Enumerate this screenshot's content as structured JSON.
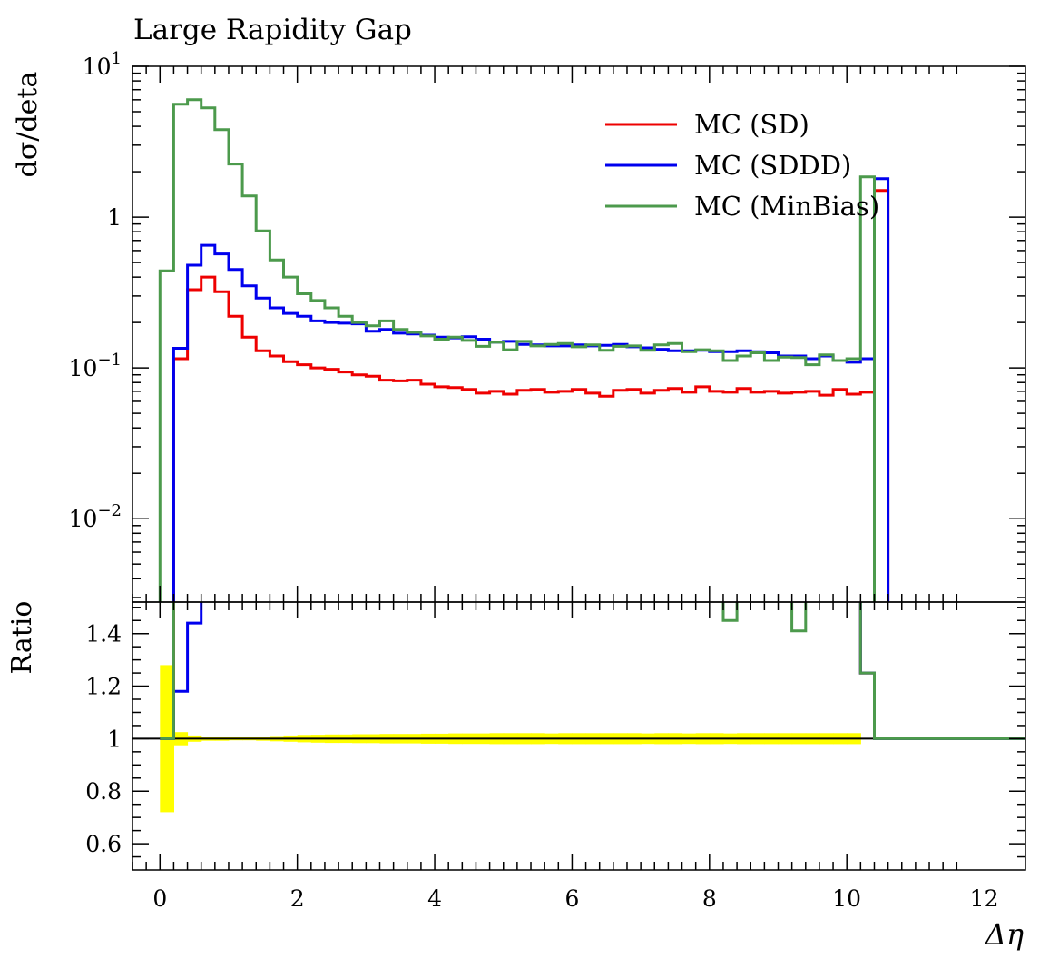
{
  "chart_data": {
    "type": "line",
    "title": "Large Rapidity Gap",
    "xlabel": "Δη",
    "ylabel": "dσ/deta",
    "ratio_ylabel": "Ratio",
    "xlim": [
      -0.4,
      12.6
    ],
    "ylim": [
      0.0028,
      10
    ],
    "yscale": "log",
    "ratio_ylim": [
      0.5,
      1.52
    ],
    "x_ticks": [
      "0",
      "2",
      "4",
      "6",
      "8",
      "10",
      "12"
    ],
    "x_tick_values": [
      0,
      2,
      4,
      6,
      8,
      10,
      12
    ],
    "y_ticks": [
      {
        "value": 10,
        "mantissa": "10",
        "exp": "1"
      },
      {
        "value": 1,
        "mantissa": "1",
        "exp": ""
      },
      {
        "value": 0.1,
        "mantissa": "10",
        "exp": "−1"
      },
      {
        "value": 0.01,
        "mantissa": "10",
        "exp": "−2"
      }
    ],
    "ratio_ticks": [
      "0.6",
      "0.8",
      "1",
      "1.2",
      "1.4"
    ],
    "ratio_tick_values": [
      0.6,
      0.8,
      1.0,
      1.2,
      1.4
    ],
    "legend_position": "top-right",
    "bin_edges": [
      0,
      0.2,
      0.4,
      0.6,
      0.8,
      1.0,
      1.2,
      1.4,
      1.6,
      1.8,
      2.0,
      2.2,
      2.4,
      2.6,
      2.8,
      3.0,
      3.2,
      3.4,
      3.6,
      3.8,
      4.0,
      4.2,
      4.4,
      4.6,
      4.8,
      5.0,
      5.2,
      5.4,
      5.6,
      5.8,
      6.0,
      6.2,
      6.4,
      6.6,
      6.8,
      7.0,
      7.2,
      7.4,
      7.6,
      7.8,
      8.0,
      8.2,
      8.4,
      8.6,
      8.8,
      9.0,
      9.2,
      9.4,
      9.6,
      9.8,
      10.0,
      10.2,
      10.4,
      10.6
    ],
    "series": [
      {
        "name": "MC (SD)",
        "color": "#ee0000",
        "values": [
          0.0001,
          0.115,
          0.33,
          0.4,
          0.32,
          0.22,
          0.16,
          0.13,
          0.12,
          0.11,
          0.105,
          0.1,
          0.098,
          0.094,
          0.09,
          0.088,
          0.083,
          0.082,
          0.083,
          0.078,
          0.075,
          0.074,
          0.072,
          0.068,
          0.07,
          0.067,
          0.071,
          0.072,
          0.069,
          0.07,
          0.072,
          0.068,
          0.065,
          0.071,
          0.072,
          0.068,
          0.071,
          0.073,
          0.069,
          0.075,
          0.07,
          0.069,
          0.073,
          0.069,
          0.07,
          0.068,
          0.069,
          0.07,
          0.066,
          0.072,
          0.067,
          0.069,
          1.5
        ],
        "ratio": [
          1.0,
          3.0,
          3.0,
          3.0,
          3.0,
          3.0,
          3.0,
          3.0,
          3.0,
          3.0,
          3.0,
          3.0,
          3.0,
          3.0,
          3.0,
          3.0,
          3.0,
          3.0,
          3.0,
          3.0,
          3.0,
          3.0,
          3.0,
          3.0,
          3.0,
          3.0,
          3.0,
          3.0,
          3.0,
          3.0,
          3.0,
          3.0,
          3.0,
          3.0,
          3.0,
          3.0,
          3.0,
          3.0,
          3.0,
          3.0,
          3.0,
          3.0,
          3.0,
          3.0,
          3.0,
          3.0,
          3.0,
          3.0,
          3.0,
          3.0,
          3.0,
          1.25,
          1.0
        ]
      },
      {
        "name": "MC (SDDD)",
        "color": "#0000ee",
        "values": [
          0.0001,
          0.135,
          0.48,
          0.65,
          0.57,
          0.45,
          0.35,
          0.29,
          0.25,
          0.23,
          0.22,
          0.205,
          0.2,
          0.198,
          0.196,
          0.175,
          0.18,
          0.17,
          0.168,
          0.165,
          0.16,
          0.158,
          0.161,
          0.155,
          0.148,
          0.15,
          0.143,
          0.142,
          0.14,
          0.14,
          0.142,
          0.14,
          0.141,
          0.143,
          0.138,
          0.136,
          0.133,
          0.13,
          0.13,
          0.131,
          0.128,
          0.128,
          0.13,
          0.128,
          0.126,
          0.12,
          0.12,
          0.115,
          0.12,
          0.112,
          0.109,
          0.115,
          1.8
        ],
        "ratio": [
          1.0,
          1.18,
          1.44,
          3.0,
          3.0,
          3.0,
          3.0,
          3.0,
          3.0,
          3.0,
          3.0,
          3.0,
          3.0,
          3.0,
          3.0,
          3.0,
          3.0,
          3.0,
          3.0,
          3.0,
          3.0,
          3.0,
          3.0,
          3.0,
          3.0,
          3.0,
          3.0,
          3.0,
          3.0,
          3.0,
          3.0,
          3.0,
          3.0,
          3.0,
          3.0,
          3.0,
          3.0,
          3.0,
          3.0,
          3.0,
          3.0,
          3.0,
          3.0,
          3.0,
          3.0,
          3.0,
          3.0,
          3.0,
          3.0,
          3.0,
          3.0,
          1.25,
          1.0
        ]
      },
      {
        "name": "MC (MinBias)",
        "color": "#4c9a4c",
        "values": [
          0.44,
          5.6,
          6.0,
          5.3,
          3.8,
          2.25,
          1.38,
          0.81,
          0.52,
          0.4,
          0.31,
          0.28,
          0.25,
          0.22,
          0.2,
          0.19,
          0.205,
          0.18,
          0.172,
          0.163,
          0.155,
          0.16,
          0.152,
          0.139,
          0.148,
          0.132,
          0.15,
          0.14,
          0.143,
          0.145,
          0.138,
          0.142,
          0.131,
          0.139,
          0.14,
          0.131,
          0.142,
          0.145,
          0.128,
          0.132,
          0.13,
          0.112,
          0.12,
          0.126,
          0.112,
          0.118,
          0.117,
          0.105,
          0.122,
          0.112,
          0.115,
          1.85,
          0.0001
        ],
        "ratio": [
          1.0,
          3.0,
          3.0,
          3.0,
          3.0,
          3.0,
          3.0,
          3.0,
          3.0,
          3.0,
          3.0,
          3.0,
          3.0,
          3.0,
          3.0,
          3.0,
          3.0,
          3.0,
          3.0,
          3.0,
          3.0,
          3.0,
          3.0,
          3.0,
          3.0,
          3.0,
          3.0,
          3.0,
          3.0,
          3.0,
          3.0,
          3.0,
          3.0,
          3.0,
          3.0,
          3.0,
          3.0,
          3.0,
          3.0,
          3.0,
          3.0,
          1.45,
          3.0,
          3.0,
          3.0,
          3.0,
          1.41,
          3.0,
          3.0,
          3.0,
          3.0,
          1.25,
          1.0
        ]
      }
    ],
    "uncertainty_band": {
      "color": "#ffff00",
      "half_width": [
        0.28,
        0.025,
        0.012,
        0.008,
        0.008,
        0.006,
        0.006,
        0.008,
        0.01,
        0.012,
        0.014,
        0.015,
        0.016,
        0.016,
        0.017,
        0.017,
        0.018,
        0.018,
        0.018,
        0.019,
        0.019,
        0.02,
        0.02,
        0.02,
        0.021,
        0.021,
        0.021,
        0.021,
        0.02,
        0.021,
        0.021,
        0.021,
        0.021,
        0.021,
        0.021,
        0.02,
        0.021,
        0.021,
        0.02,
        0.021,
        0.021,
        0.02,
        0.021,
        0.021,
        0.021,
        0.021,
        0.021,
        0.021,
        0.021,
        0.021,
        0.021,
        0.0,
        0.0
      ]
    }
  }
}
